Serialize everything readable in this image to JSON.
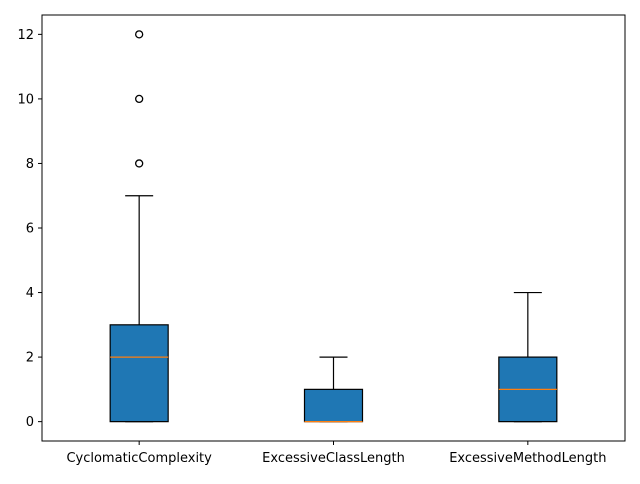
{
  "chart_data": {
    "type": "box",
    "categories": [
      "CyclomaticComplexity",
      "ExcessiveClassLength",
      "ExcessiveMethodLength"
    ],
    "boxes": [
      {
        "category": "CyclomaticComplexity",
        "whislo": 0,
        "q1": 0,
        "med": 2,
        "q3": 3,
        "whishi": 7,
        "fliers": [
          8,
          10,
          12
        ]
      },
      {
        "category": "ExcessiveClassLength",
        "whislo": 0,
        "q1": 0,
        "med": 0,
        "q3": 1,
        "whishi": 2,
        "fliers": []
      },
      {
        "category": "ExcessiveMethodLength",
        "whislo": 0,
        "q1": 0,
        "med": 1,
        "q3": 2,
        "whishi": 4,
        "fliers": []
      }
    ],
    "yticks": [
      0,
      2,
      4,
      6,
      8,
      10,
      12
    ],
    "ylim": [
      -0.6,
      12.6
    ],
    "grid": false,
    "colors": {
      "box_fill": "#1f77b4",
      "median": "#ff7f0e",
      "edge": "#000000"
    }
  }
}
